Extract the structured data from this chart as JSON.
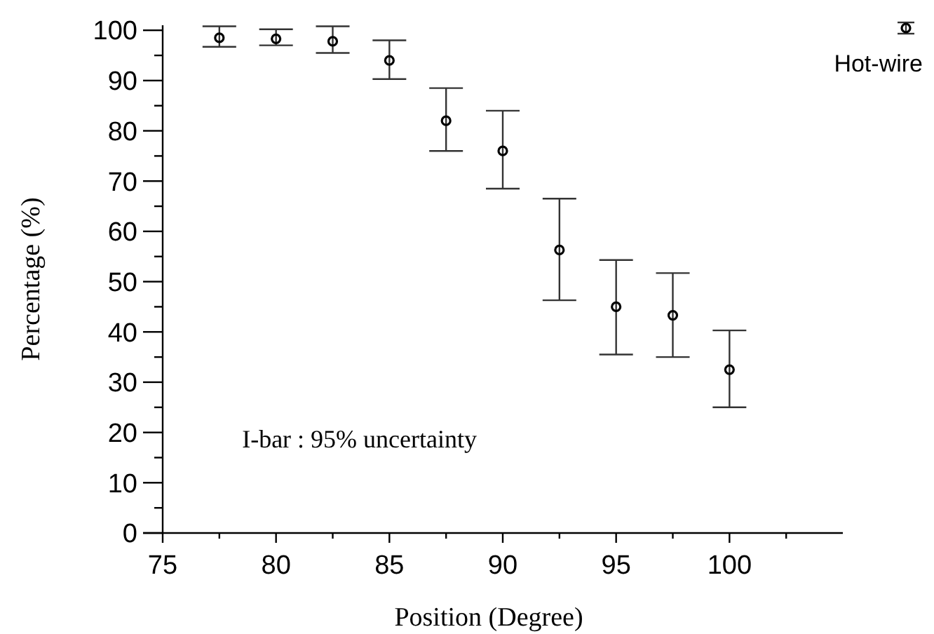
{
  "chart_data": {
    "type": "scatter",
    "xlabel": "Position (Degree)",
    "ylabel": "Percentage (%)",
    "annotations": [
      "I-bar : 95% uncertainty"
    ],
    "x": [
      77.5,
      80,
      82.5,
      85,
      87.5,
      90,
      92.5,
      95,
      97.5,
      100
    ],
    "series": [
      {
        "name": "Hot-wire",
        "color": "#000000",
        "values": [
          98.5,
          98.3,
          97.8,
          94,
          82,
          76,
          56.3,
          45,
          43.3,
          32.5
        ],
        "errors": [
          [
            96.7,
            100.8
          ],
          [
            97,
            100.2
          ],
          [
            95.5,
            100.8
          ],
          [
            90.3,
            98
          ],
          [
            76,
            88.5
          ],
          [
            68.5,
            84
          ],
          [
            46.3,
            66.5
          ],
          [
            35.5,
            54.3
          ],
          [
            35,
            51.7
          ],
          [
            25,
            40.3
          ]
        ]
      }
    ],
    "xlim": [
      75,
      105
    ],
    "ylim": [
      0,
      101
    ],
    "xticks": [
      75,
      {
        "value": 77.5,
        "label": null
      },
      80,
      {
        "value": 82.5,
        "label": null
      },
      85,
      {
        "value": 87.5,
        "label": null
      },
      90,
      {
        "value": 92.5,
        "label": null
      },
      95,
      {
        "value": 97.5,
        "label": null
      },
      100,
      {
        "value": 102.5,
        "label": null
      }
    ],
    "yticks": [
      0,
      {
        "value": 5,
        "label": null
      },
      10,
      {
        "value": 15,
        "label": null
      },
      20,
      {
        "value": 25,
        "label": null
      },
      30,
      {
        "value": 35,
        "label": null
      },
      40,
      {
        "value": 45,
        "label": null
      },
      50,
      {
        "value": 55,
        "label": null
      },
      60,
      {
        "value": 65,
        "label": null
      },
      70,
      {
        "value": 75,
        "label": null
      },
      80,
      {
        "value": 85,
        "label": null
      },
      90,
      {
        "value": 95,
        "label": null
      },
      100
    ],
    "marker": "circle",
    "legend": "top right",
    "grid": false
  }
}
